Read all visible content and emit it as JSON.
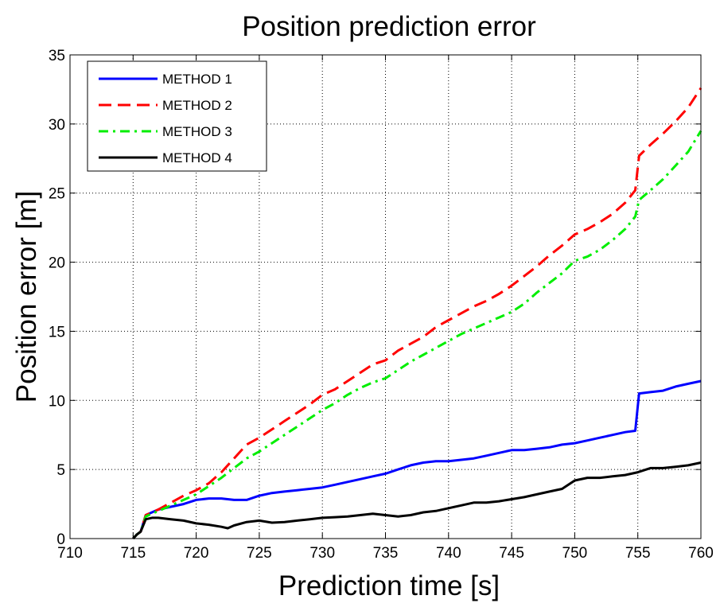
{
  "chart_data": {
    "type": "line",
    "title": "Position prediction error",
    "xlabel": "Prediction time [s]",
    "ylabel": "Position error [m]",
    "xlim": [
      710,
      760
    ],
    "ylim": [
      0,
      35
    ],
    "xticks": [
      710,
      715,
      720,
      725,
      730,
      735,
      740,
      745,
      750,
      755,
      760
    ],
    "yticks": [
      0,
      5,
      10,
      15,
      20,
      25,
      30,
      35
    ],
    "grid": true,
    "legend_position": "top-left",
    "series": [
      {
        "name": "METHOD 1",
        "color": "#0000ff",
        "dash": "solid",
        "x": [
          715,
          715.3,
          715.6,
          716,
          716.5,
          717,
          718,
          719,
          720,
          721,
          722,
          723,
          724,
          725,
          726,
          727,
          728,
          729,
          730,
          731,
          732,
          733,
          734,
          735,
          736,
          737,
          738,
          739,
          740,
          741,
          742,
          743,
          744,
          745,
          746,
          747,
          748,
          749,
          750,
          751,
          752,
          753,
          754,
          754.8,
          755.1,
          756,
          757,
          758,
          759,
          760
        ],
        "y": [
          0,
          0.3,
          0.5,
          1.7,
          1.9,
          2.1,
          2.3,
          2.5,
          2.8,
          2.9,
          2.9,
          2.8,
          2.8,
          3.1,
          3.3,
          3.4,
          3.5,
          3.6,
          3.7,
          3.9,
          4.1,
          4.3,
          4.5,
          4.7,
          5.0,
          5.3,
          5.5,
          5.6,
          5.6,
          5.7,
          5.8,
          6.0,
          6.2,
          6.4,
          6.4,
          6.5,
          6.6,
          6.8,
          6.9,
          7.1,
          7.3,
          7.5,
          7.7,
          7.8,
          10.5,
          10.6,
          10.7,
          11.0,
          11.2,
          11.4
        ]
      },
      {
        "name": "METHOD 2",
        "color": "#ff0000",
        "dash": "dashed",
        "x": [
          715,
          715.3,
          715.6,
          716,
          716.5,
          717,
          718,
          719,
          720,
          721,
          722,
          723,
          724,
          725,
          726,
          727,
          728,
          729,
          730,
          731,
          732,
          733,
          734,
          735,
          736,
          737,
          738,
          739,
          740,
          741,
          742,
          743,
          744,
          745,
          746,
          747,
          748,
          749,
          750,
          751,
          752,
          753,
          754,
          754.8,
          755.1,
          756,
          757,
          758,
          759,
          760
        ],
        "y": [
          0,
          0.3,
          0.5,
          1.7,
          1.9,
          2.1,
          2.6,
          3.1,
          3.5,
          4.0,
          4.8,
          5.8,
          6.8,
          7.3,
          7.9,
          8.5,
          9.1,
          9.7,
          10.4,
          10.8,
          11.4,
          12.0,
          12.6,
          12.9,
          13.6,
          14.1,
          14.6,
          15.3,
          15.8,
          16.3,
          16.8,
          17.2,
          17.7,
          18.3,
          19.0,
          19.7,
          20.5,
          21.2,
          22.0,
          22.4,
          22.9,
          23.5,
          24.3,
          25.2,
          27.7,
          28.5,
          29.3,
          30.2,
          31.2,
          32.6
        ]
      },
      {
        "name": "METHOD 3",
        "color": "#00ee00",
        "dash": "dashdot",
        "x": [
          715,
          715.3,
          715.6,
          716,
          716.5,
          717,
          718,
          719,
          720,
          721,
          722,
          723,
          724,
          725,
          726,
          727,
          728,
          729,
          730,
          731,
          732,
          733,
          734,
          735,
          736,
          737,
          738,
          739,
          740,
          741,
          742,
          743,
          744,
          745,
          746,
          747,
          748,
          749,
          750,
          751,
          752,
          753,
          754,
          754.8,
          755.1,
          756,
          757,
          758,
          759,
          760
        ],
        "y": [
          0,
          0.3,
          0.5,
          1.6,
          1.8,
          2.0,
          2.4,
          2.8,
          3.2,
          3.8,
          4.4,
          5.1,
          5.8,
          6.3,
          6.9,
          7.5,
          8.1,
          8.7,
          9.3,
          9.8,
          10.4,
          10.9,
          11.3,
          11.6,
          12.2,
          12.8,
          13.3,
          13.8,
          14.3,
          14.8,
          15.2,
          15.6,
          16.0,
          16.4,
          17.0,
          17.8,
          18.5,
          19.2,
          20.1,
          20.4,
          20.9,
          21.6,
          22.4,
          23.3,
          24.5,
          25.2,
          26.0,
          27.0,
          28.0,
          29.5
        ]
      },
      {
        "name": "METHOD 4",
        "color": "#000000",
        "dash": "solid",
        "x": [
          715,
          715.3,
          715.6,
          716,
          716.5,
          717,
          718,
          719,
          720,
          721,
          722,
          722.5,
          723,
          724,
          725,
          726,
          727,
          728,
          729,
          730,
          731,
          732,
          733,
          734,
          735,
          736,
          737,
          738,
          739,
          740,
          741,
          742,
          743,
          744,
          745,
          746,
          747,
          748,
          749,
          750,
          751,
          752,
          753,
          754,
          755,
          756,
          757,
          758,
          759,
          760
        ],
        "y": [
          0,
          0.3,
          0.5,
          1.4,
          1.5,
          1.5,
          1.4,
          1.3,
          1.1,
          1.0,
          0.85,
          0.75,
          0.95,
          1.2,
          1.3,
          1.15,
          1.2,
          1.3,
          1.4,
          1.5,
          1.55,
          1.6,
          1.7,
          1.8,
          1.7,
          1.6,
          1.7,
          1.9,
          2.0,
          2.2,
          2.4,
          2.6,
          2.6,
          2.7,
          2.85,
          3.0,
          3.2,
          3.4,
          3.6,
          4.2,
          4.4,
          4.4,
          4.5,
          4.6,
          4.8,
          5.1,
          5.1,
          5.2,
          5.3,
          5.5
        ]
      }
    ]
  }
}
